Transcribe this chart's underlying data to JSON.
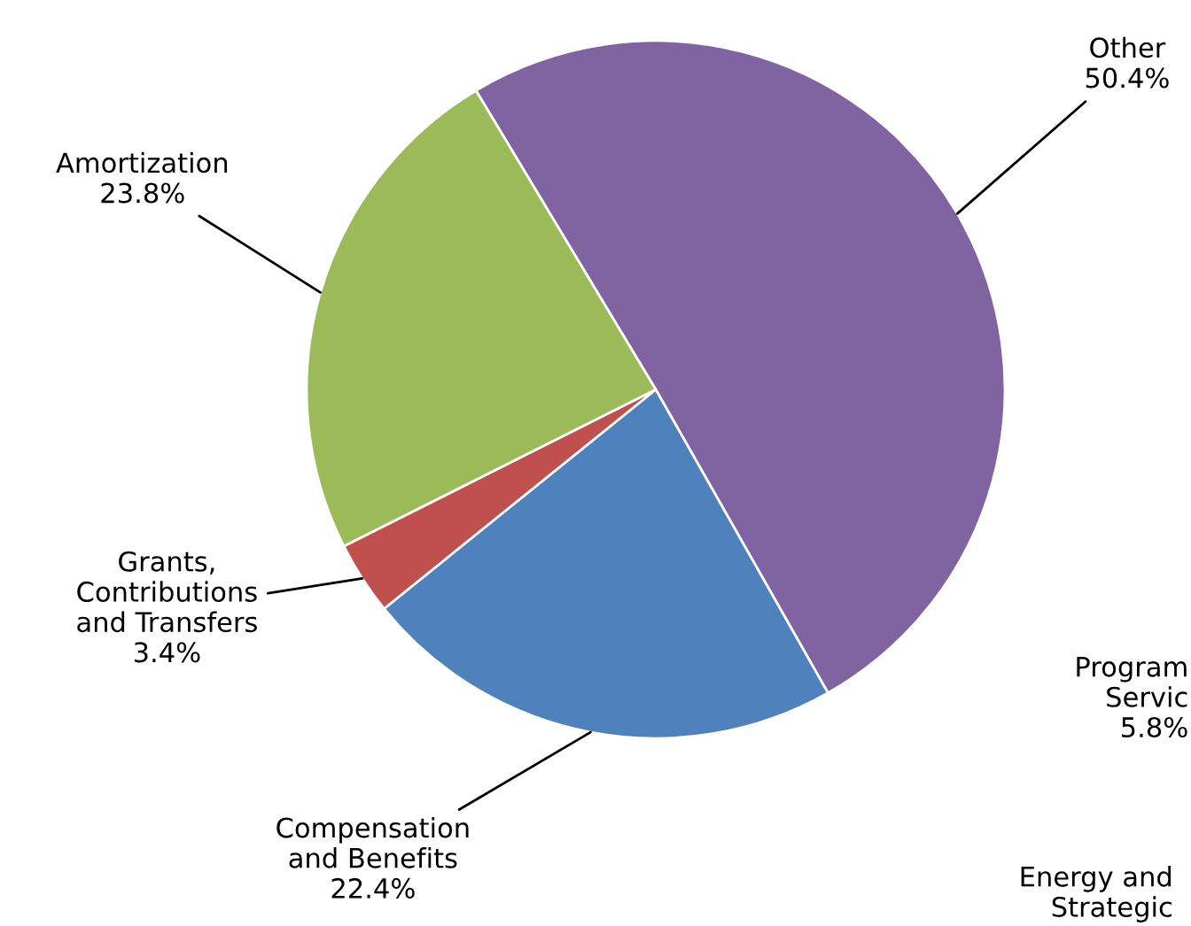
{
  "chart_data": {
    "type": "pie",
    "categories": [
      "Other",
      "Compensation\nand Benefits",
      "Grants,\nContributions\nand Transfers",
      "Amortization"
    ],
    "values": [
      50.4,
      22.4,
      3.4,
      23.8
    ],
    "value_labels": [
      "50.4%",
      "22.4%",
      "3.4%",
      "23.8%"
    ],
    "colors": [
      "#8064a2",
      "#4f81bd",
      "#c0504d",
      "#9bbb59"
    ],
    "annotations": [
      "Program\nServic\n5.8%",
      "Energy and\nStrategic"
    ]
  }
}
